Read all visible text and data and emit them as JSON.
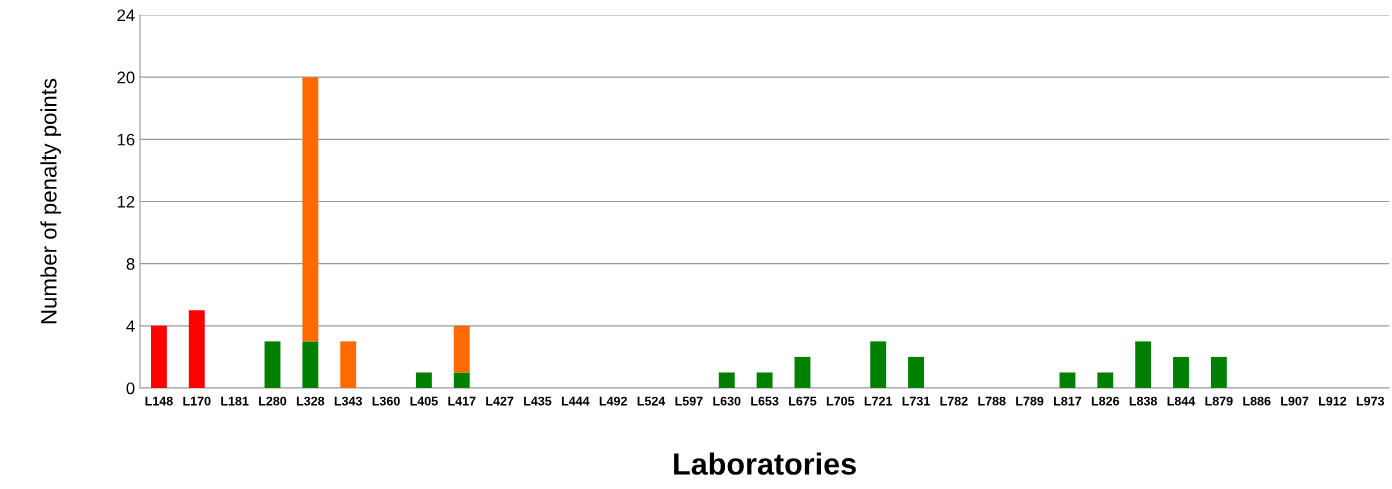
{
  "chart_data": {
    "type": "bar",
    "stacked": true,
    "xlabel": "Laboratories",
    "ylabel": "Number of penalty points",
    "categories": [
      "L148",
      "L170",
      "L181",
      "L280",
      "L328",
      "L343",
      "L360",
      "L405",
      "L417",
      "L427",
      "L435",
      "L444",
      "L492",
      "L524",
      "L597",
      "L630",
      "L653",
      "L675",
      "L705",
      "L721",
      "L731",
      "L782",
      "L788",
      "L789",
      "L817",
      "L826",
      "L838",
      "L844",
      "L879",
      "L886",
      "L907",
      "L912",
      "L973"
    ],
    "series": [
      {
        "color": "#008000",
        "values": [
          0,
          0,
          0,
          3,
          3,
          0,
          0,
          1,
          1,
          0,
          0,
          0,
          0,
          0,
          0,
          1,
          1,
          2,
          0,
          3,
          2,
          0,
          0,
          0,
          1,
          1,
          3,
          2,
          2,
          0,
          0,
          0,
          0
        ]
      },
      {
        "color": "#ff6a00",
        "values": [
          0,
          0,
          0,
          0,
          17,
          3,
          0,
          0,
          3,
          0,
          0,
          0,
          0,
          0,
          0,
          0,
          0,
          0,
          0,
          0,
          0,
          0,
          0,
          0,
          0,
          0,
          0,
          0,
          0,
          0,
          0,
          0,
          0
        ]
      },
      {
        "color": "#ff0000",
        "values": [
          4,
          5,
          0,
          0,
          0,
          0,
          0,
          0,
          0,
          0,
          0,
          0,
          0,
          0,
          0,
          0,
          0,
          0,
          0,
          0,
          0,
          0,
          0,
          0,
          0,
          0,
          0,
          0,
          0,
          0,
          0,
          0,
          0
        ]
      }
    ],
    "ylim": [
      0,
      24
    ],
    "yticks": [
      0,
      4,
      8,
      12,
      16,
      20,
      24
    ],
    "grid": "y",
    "legend": false
  }
}
